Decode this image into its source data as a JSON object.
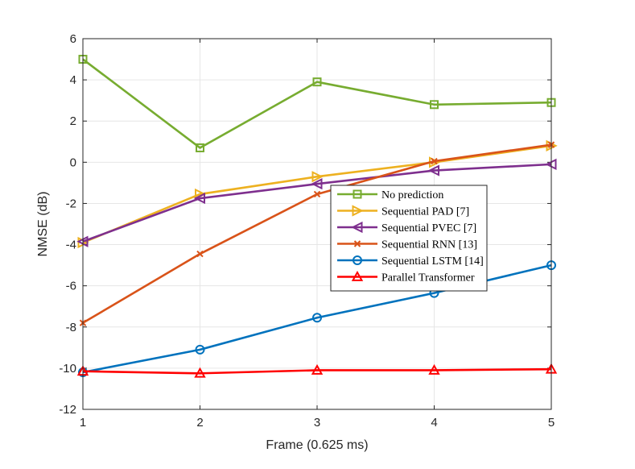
{
  "chart_data": {
    "type": "line",
    "title": "",
    "xlabel": "Frame (0.625 ms)",
    "ylabel": "NMSE (dB)",
    "xlim": [
      1,
      5
    ],
    "ylim": [
      -12,
      6
    ],
    "x": [
      1,
      2,
      3,
      4,
      5
    ],
    "x_ticks": [
      "1",
      "2",
      "3",
      "4",
      "5"
    ],
    "y_ticks": [
      "-12",
      "-10",
      "-8",
      "-6",
      "-4",
      "-2",
      "0",
      "2",
      "4",
      "6"
    ],
    "grid": true,
    "legend_position": "center-right",
    "series": [
      {
        "name": "No prediction",
        "color": "#77AC30",
        "marker": "square",
        "values": [
          5.0,
          0.7,
          3.9,
          2.8,
          2.9
        ]
      },
      {
        "name": "Sequential PAD [7]",
        "color": "#EDB120",
        "marker": "triangle-right",
        "values": [
          -3.9,
          -1.55,
          -0.7,
          0.0,
          0.8
        ]
      },
      {
        "name": "Sequential PVEC [7]",
        "color": "#7E2F8E",
        "marker": "triangle-left",
        "values": [
          -3.85,
          -1.75,
          -1.05,
          -0.4,
          -0.1
        ]
      },
      {
        "name": "Sequential RNN [13]",
        "color": "#D95319",
        "marker": "x",
        "values": [
          -7.8,
          -4.45,
          -1.55,
          0.05,
          0.85
        ]
      },
      {
        "name": "Sequential LSTM [14]",
        "color": "#0072BD",
        "marker": "circle",
        "values": [
          -10.2,
          -9.1,
          -7.55,
          -6.35,
          -5.0
        ]
      },
      {
        "name": "Parallel Transformer",
        "color": "#FF0000",
        "marker": "triangle-up",
        "values": [
          -10.15,
          -10.25,
          -10.1,
          -10.1,
          -10.05
        ]
      }
    ]
  }
}
